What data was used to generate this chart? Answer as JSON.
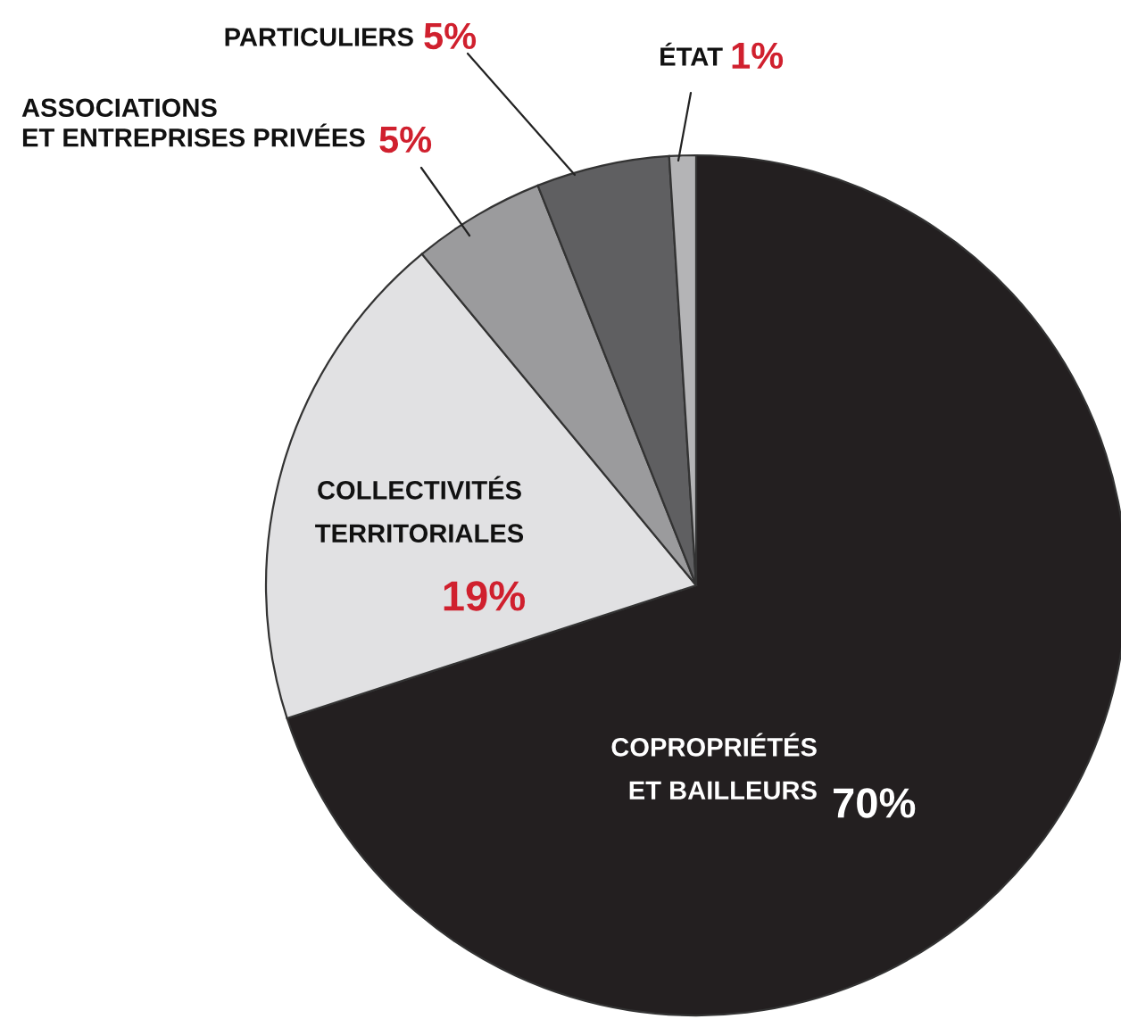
{
  "chart_data": {
    "type": "pie",
    "categories": [
      "COPROPRIÉTÉS\nET BAILLEURS",
      "COLLECTIVITÉS\nTERRITORIALES",
      "ASSOCIATIONS\nET ENTREPRISES PRIVÉES",
      "PARTICULIERS",
      "ÉTAT"
    ],
    "values": [
      70,
      19,
      5,
      5,
      1
    ],
    "value_labels": [
      "70%",
      "19%",
      "5%",
      "5%",
      "1%"
    ],
    "colors": [
      "#231f20",
      "#e1e1e3",
      "#9b9b9d",
      "#5f5f61",
      "#b4b4b6"
    ]
  }
}
